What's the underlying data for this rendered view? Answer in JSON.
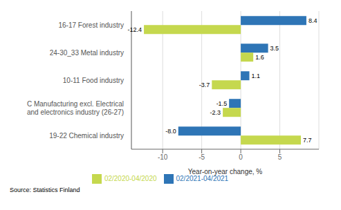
{
  "chart_data": {
    "type": "bar",
    "orientation": "horizontal",
    "categories": [
      "19-22 Chemical industry",
      "C Manufacturing excl. Electrical\nand electronics industry (26-27)",
      "10-11 Food industry",
      "24-30_33 Metal industry",
      "16-17 Forest industry"
    ],
    "series": [
      {
        "name": "02/2021-04/2021",
        "color": "#2E75B6",
        "values": [
          -8.0,
          -1.5,
          1.1,
          3.5,
          8.4
        ],
        "value_labels": [
          "-8.0",
          "-1.5",
          "1.1",
          "3.5",
          "8.4"
        ]
      },
      {
        "name": "02/2020-04/2020",
        "color": "#C5D84E",
        "values": [
          7.7,
          -2.3,
          -3.7,
          1.6,
          -12.4
        ],
        "value_labels": [
          "7.7",
          "-2.3",
          "-3.7",
          "1.6",
          "-12.4"
        ]
      }
    ],
    "xlabel": "Year-on-year change, %",
    "xlim": [
      -14,
      10
    ],
    "xticks": [
      -10,
      -5,
      0,
      5
    ],
    "grid": true,
    "data_labels": true,
    "legend": "bottom",
    "annotations": [
      "Source: Statistics Finland"
    ]
  }
}
